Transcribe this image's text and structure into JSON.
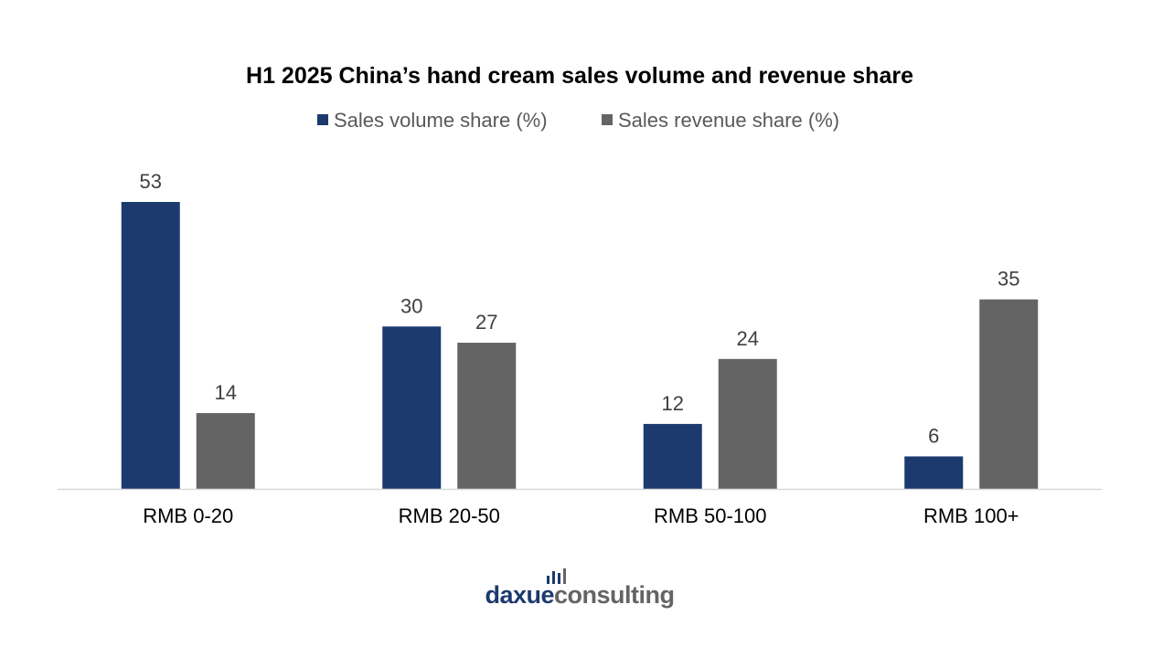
{
  "chart_data": {
    "type": "bar",
    "title": "H1 2025 China’s hand cream sales volume and revenue share",
    "categories": [
      "RMB 0-20",
      "RMB 20-50",
      "RMB 50-100",
      "RMB 100+"
    ],
    "series": [
      {
        "name": "Sales volume share (%)",
        "values": [
          53,
          30,
          12,
          6
        ],
        "color": "#1c3a6e"
      },
      {
        "name": "Sales revenue share (%)",
        "values": [
          14,
          27,
          24,
          35
        ],
        "color": "#646464"
      }
    ],
    "ylim": [
      0,
      53
    ],
    "grid": false,
    "data_labels": true,
    "legend_position": "top-center"
  },
  "logo": {
    "part1": "daxue",
    "part2": "consulting",
    "color1": "#1c3a6e",
    "color2": "#646464"
  }
}
